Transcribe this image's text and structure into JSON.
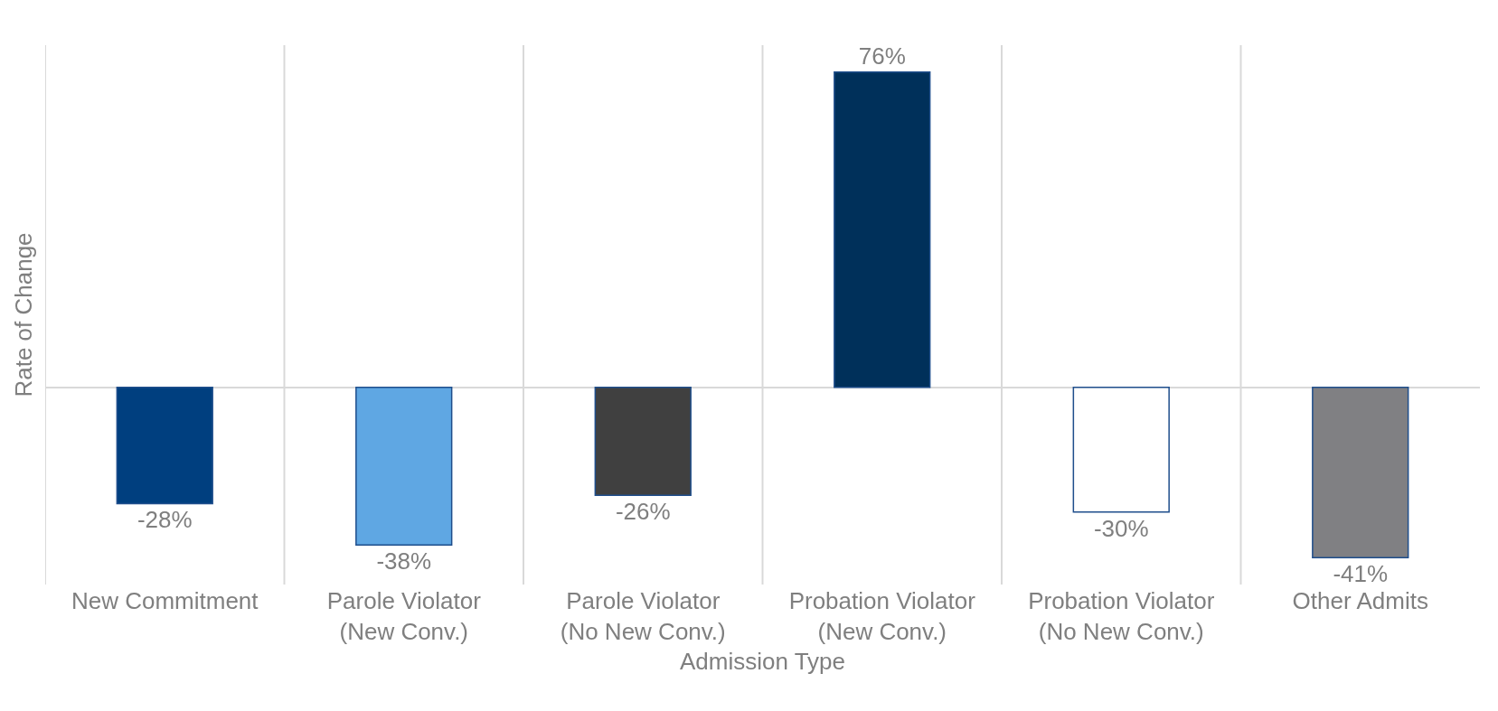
{
  "chart_data": {
    "type": "bar",
    "xlabel": "Admission Type",
    "ylabel": "Rate of Change",
    "categories": [
      "New Commitment",
      "Parole Violator\n(New Conv.)",
      "Parole Violator\n(No New Conv.)",
      "Probation Violator\n(New Conv.)",
      "Probation Violator\n(No New Conv.)",
      "Other Admits"
    ],
    "values": [
      -28,
      -38,
      -26,
      76,
      -30,
      -41
    ],
    "value_labels": [
      "-28%",
      "-38%",
      "-26%",
      "76%",
      "-30%",
      "-41%"
    ],
    "colors": [
      "#003f7f",
      "#5fa7e3",
      "#404040",
      "#00305a",
      "#ffffff",
      "#808083"
    ],
    "grid": "x",
    "tick_labels": "x"
  }
}
